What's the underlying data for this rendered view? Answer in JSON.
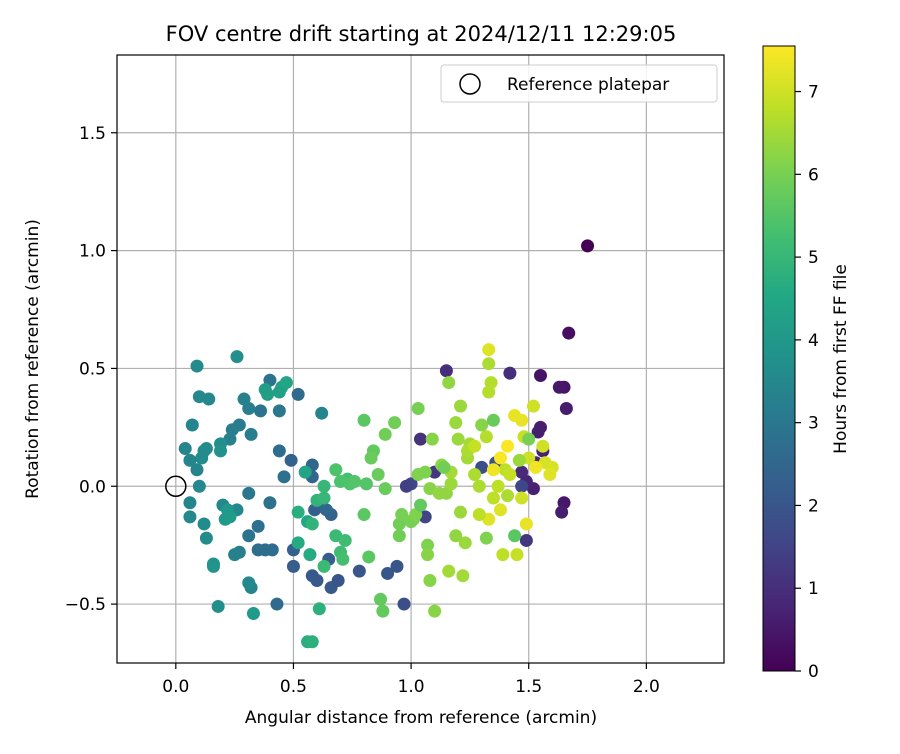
{
  "chart_data": {
    "type": "scatter",
    "title": "FOV centre drift starting at 2024/12/11 12:29:05",
    "xlabel": "Angular distance from reference (arcmin)",
    "ylabel": "Rotation from reference (arcmin)",
    "xlim": [
      -0.25,
      2.33
    ],
    "ylim": [
      -0.75,
      1.83
    ],
    "xticks": [
      {
        "value": 0.0,
        "label": "0.0"
      },
      {
        "value": 0.5,
        "label": "0.5"
      },
      {
        "value": 1.0,
        "label": "1.0"
      },
      {
        "value": 1.5,
        "label": "1.5"
      },
      {
        "value": 2.0,
        "label": "2.0"
      }
    ],
    "yticks": [
      {
        "value": -0.5,
        "label": "−0.5"
      },
      {
        "value": 0.0,
        "label": "0.0"
      },
      {
        "value": 0.5,
        "label": "0.5"
      },
      {
        "value": 1.0,
        "label": "1.0"
      },
      {
        "value": 1.5,
        "label": "1.5"
      }
    ],
    "grid": true,
    "legend": {
      "position": "top-right",
      "entries": [
        {
          "label": "Reference platepar",
          "marker": "open-circle"
        }
      ]
    },
    "reference_point": {
      "x": 0.0,
      "y": 0.0
    },
    "colorbar": {
      "label": "Hours from first FF file",
      "min": 0,
      "max": 7.55,
      "colormap": "viridis",
      "ticks": [
        {
          "value": 0,
          "label": "0"
        },
        {
          "value": 1,
          "label": "1"
        },
        {
          "value": 2,
          "label": "2"
        },
        {
          "value": 3,
          "label": "3"
        },
        {
          "value": 4,
          "label": "4"
        },
        {
          "value": 5,
          "label": "5"
        },
        {
          "value": 6,
          "label": "6"
        },
        {
          "value": 7,
          "label": "7"
        }
      ]
    },
    "points": [
      {
        "x": 1.75,
        "y": 1.02,
        "c": 0.0
      },
      {
        "x": 1.67,
        "y": 0.65,
        "c": 0.3
      },
      {
        "x": 1.55,
        "y": 0.47,
        "c": 0.4
      },
      {
        "x": 1.65,
        "y": 0.42,
        "c": 0.4
      },
      {
        "x": 1.63,
        "y": 0.42,
        "c": 0.5
      },
      {
        "x": 1.66,
        "y": 0.33,
        "c": 0.6
      },
      {
        "x": 1.55,
        "y": 0.25,
        "c": 0.6
      },
      {
        "x": 1.54,
        "y": 0.23,
        "c": 0.6
      },
      {
        "x": 1.56,
        "y": 0.15,
        "c": 0.7
      },
      {
        "x": 1.53,
        "y": 0.1,
        "c": 0.8
      },
      {
        "x": 1.65,
        "y": -0.07,
        "c": 0.5
      },
      {
        "x": 1.64,
        "y": -0.11,
        "c": 0.6
      },
      {
        "x": 1.52,
        "y": -0.01,
        "c": 0.7
      },
      {
        "x": 1.47,
        "y": 0.06,
        "c": 0.9
      },
      {
        "x": 1.49,
        "y": 0.02,
        "c": 0.8
      },
      {
        "x": 1.15,
        "y": 0.49,
        "c": 1.0
      },
      {
        "x": 1.04,
        "y": 0.2,
        "c": 1.1
      },
      {
        "x": 1.1,
        "y": 0.06,
        "c": 1.2
      },
      {
        "x": 1.0,
        "y": 0.01,
        "c": 1.6
      },
      {
        "x": 0.98,
        "y": 0.0,
        "c": 1.4
      },
      {
        "x": 1.06,
        "y": -0.13,
        "c": 1.5
      },
      {
        "x": 1.42,
        "y": 0.48,
        "c": 1.0
      },
      {
        "x": 1.49,
        "y": -0.23,
        "c": 1.2
      },
      {
        "x": 1.47,
        "y": 0.0,
        "c": 1.6
      },
      {
        "x": 1.3,
        "y": 0.08,
        "c": 1.8
      },
      {
        "x": 1.36,
        "y": 0.1,
        "c": 1.9
      },
      {
        "x": 0.97,
        "y": -0.5,
        "c": 1.8
      },
      {
        "x": 0.9,
        "y": -0.37,
        "c": 2.0
      },
      {
        "x": 0.94,
        "y": -0.34,
        "c": 2.0
      },
      {
        "x": 0.78,
        "y": -0.36,
        "c": 2.0
      },
      {
        "x": 0.66,
        "y": -0.43,
        "c": 2.1
      },
      {
        "x": 0.6,
        "y": -0.4,
        "c": 2.1
      },
      {
        "x": 0.58,
        "y": -0.38,
        "c": 2.1
      },
      {
        "x": 0.69,
        "y": -0.4,
        "c": 2.0
      },
      {
        "x": 0.65,
        "y": -0.31,
        "c": 2.2
      },
      {
        "x": 0.5,
        "y": -0.34,
        "c": 2.2
      },
      {
        "x": 0.5,
        "y": -0.27,
        "c": 2.3
      },
      {
        "x": 0.59,
        "y": -0.1,
        "c": 2.3
      },
      {
        "x": 0.61,
        "y": -0.07,
        "c": 2.3
      },
      {
        "x": 0.66,
        "y": -0.12,
        "c": 2.4
      },
      {
        "x": 0.64,
        "y": -0.1,
        "c": 2.5
      },
      {
        "x": 0.49,
        "y": 0.11,
        "c": 2.4
      },
      {
        "x": 0.58,
        "y": 0.09,
        "c": 2.5
      },
      {
        "x": 0.58,
        "y": 0.04,
        "c": 2.5
      },
      {
        "x": 0.52,
        "y": 0.39,
        "c": 2.6
      },
      {
        "x": 0.38,
        "y": -0.27,
        "c": 2.7
      },
      {
        "x": 0.41,
        "y": -0.27,
        "c": 2.7
      },
      {
        "x": 0.35,
        "y": -0.27,
        "c": 2.7
      },
      {
        "x": 0.43,
        "y": -0.5,
        "c": 2.6
      },
      {
        "x": 0.44,
        "y": 0.15,
        "c": 2.7
      },
      {
        "x": 0.46,
        "y": 0.04,
        "c": 2.8
      },
      {
        "x": 0.4,
        "y": -0.07,
        "c": 2.8
      },
      {
        "x": 0.35,
        "y": -0.17,
        "c": 2.8
      },
      {
        "x": 0.31,
        "y": -0.21,
        "c": 2.9
      },
      {
        "x": 0.31,
        "y": -0.03,
        "c": 3.0
      },
      {
        "x": 0.36,
        "y": 0.32,
        "c": 2.9
      },
      {
        "x": 0.4,
        "y": 0.45,
        "c": 2.9
      },
      {
        "x": 0.44,
        "y": 0.32,
        "c": 3.0
      },
      {
        "x": 0.27,
        "y": 0.26,
        "c": 3.1
      },
      {
        "x": 0.24,
        "y": 0.24,
        "c": 3.2
      },
      {
        "x": 0.23,
        "y": 0.2,
        "c": 3.3
      },
      {
        "x": 0.31,
        "y": 0.33,
        "c": 3.2
      },
      {
        "x": 0.29,
        "y": 0.37,
        "c": 3.3
      },
      {
        "x": 0.32,
        "y": 0.22,
        "c": 3.2
      },
      {
        "x": 0.27,
        "y": -0.28,
        "c": 3.2
      },
      {
        "x": 0.25,
        "y": -0.29,
        "c": 3.3
      },
      {
        "x": 0.32,
        "y": -0.43,
        "c": 3.4
      },
      {
        "x": 0.31,
        "y": -0.41,
        "c": 3.5
      },
      {
        "x": 0.26,
        "y": -0.1,
        "c": 3.5
      },
      {
        "x": 0.2,
        "y": -0.08,
        "c": 3.5
      },
      {
        "x": 0.12,
        "y": -0.16,
        "c": 3.6
      },
      {
        "x": 0.13,
        "y": -0.22,
        "c": 3.6
      },
      {
        "x": 0.06,
        "y": -0.13,
        "c": 3.5
      },
      {
        "x": 0.06,
        "y": -0.07,
        "c": 3.4
      },
      {
        "x": 0.1,
        "y": 0.0,
        "c": 3.5
      },
      {
        "x": 0.09,
        "y": 0.07,
        "c": 3.4
      },
      {
        "x": 0.06,
        "y": 0.11,
        "c": 3.4
      },
      {
        "x": 0.04,
        "y": 0.16,
        "c": 3.4
      },
      {
        "x": 0.07,
        "y": 0.26,
        "c": 3.4
      },
      {
        "x": 0.12,
        "y": 0.15,
        "c": 3.5
      },
      {
        "x": 0.11,
        "y": 0.12,
        "c": 3.6
      },
      {
        "x": 0.13,
        "y": 0.16,
        "c": 3.6
      },
      {
        "x": 0.1,
        "y": 0.38,
        "c": 3.5
      },
      {
        "x": 0.14,
        "y": 0.37,
        "c": 3.5
      },
      {
        "x": 0.09,
        "y": 0.51,
        "c": 3.6
      },
      {
        "x": 0.26,
        "y": 0.55,
        "c": 3.7
      },
      {
        "x": 0.62,
        "y": 0.31,
        "c": 3.4
      },
      {
        "x": 0.19,
        "y": 0.18,
        "c": 3.7
      },
      {
        "x": 0.19,
        "y": 0.15,
        "c": 3.8
      },
      {
        "x": 0.18,
        "y": -0.51,
        "c": 3.7
      },
      {
        "x": 0.16,
        "y": -0.34,
        "c": 3.8
      },
      {
        "x": 0.16,
        "y": -0.33,
        "c": 3.9
      },
      {
        "x": 0.22,
        "y": -0.1,
        "c": 4.0
      },
      {
        "x": 0.21,
        "y": -0.14,
        "c": 4.0
      },
      {
        "x": 0.23,
        "y": -0.13,
        "c": 4.1
      },
      {
        "x": 0.33,
        "y": -0.54,
        "c": 4.1
      },
      {
        "x": 0.39,
        "y": 0.39,
        "c": 4.2
      },
      {
        "x": 0.38,
        "y": 0.41,
        "c": 4.2
      },
      {
        "x": 0.44,
        "y": 0.4,
        "c": 4.3
      },
      {
        "x": 0.45,
        "y": 0.42,
        "c": 4.3
      },
      {
        "x": 0.47,
        "y": 0.44,
        "c": 4.4
      },
      {
        "x": 0.55,
        "y": 0.06,
        "c": 4.4
      },
      {
        "x": 0.56,
        "y": -0.15,
        "c": 4.5
      },
      {
        "x": 0.57,
        "y": -0.29,
        "c": 4.6
      },
      {
        "x": 0.52,
        "y": -0.24,
        "c": 4.6
      },
      {
        "x": 0.52,
        "y": -0.11,
        "c": 4.7
      },
      {
        "x": 0.56,
        "y": -0.66,
        "c": 4.7
      },
      {
        "x": 0.58,
        "y": -0.66,
        "c": 4.8
      },
      {
        "x": 0.61,
        "y": -0.52,
        "c": 4.8
      },
      {
        "x": 0.58,
        "y": -0.16,
        "c": 4.9
      },
      {
        "x": 0.6,
        "y": -0.06,
        "c": 4.9
      },
      {
        "x": 0.63,
        "y": -0.05,
        "c": 5.0
      },
      {
        "x": 0.63,
        "y": 0.0,
        "c": 5.0
      },
      {
        "x": 0.63,
        "y": -0.34,
        "c": 5.1
      },
      {
        "x": 0.68,
        "y": -0.21,
        "c": 5.1
      },
      {
        "x": 0.72,
        "y": -0.23,
        "c": 5.2
      },
      {
        "x": 0.7,
        "y": -0.28,
        "c": 5.2
      },
      {
        "x": 0.71,
        "y": -0.31,
        "c": 5.3
      },
      {
        "x": 0.73,
        "y": 0.03,
        "c": 5.3
      },
      {
        "x": 0.7,
        "y": 0.02,
        "c": 5.4
      },
      {
        "x": 0.68,
        "y": 0.07,
        "c": 5.4
      },
      {
        "x": 0.74,
        "y": 0.01,
        "c": 5.4
      },
      {
        "x": 0.76,
        "y": 0.02,
        "c": 5.5
      },
      {
        "x": 0.81,
        "y": 0.01,
        "c": 5.5
      },
      {
        "x": 0.8,
        "y": 0.28,
        "c": 5.6
      },
      {
        "x": 0.8,
        "y": -0.12,
        "c": 5.6
      },
      {
        "x": 0.82,
        "y": -0.3,
        "c": 5.6
      },
      {
        "x": 0.87,
        "y": -0.48,
        "c": 5.7
      },
      {
        "x": 0.88,
        "y": -0.53,
        "c": 5.7
      },
      {
        "x": 0.84,
        "y": 0.15,
        "c": 5.7
      },
      {
        "x": 0.83,
        "y": 0.12,
        "c": 5.8
      },
      {
        "x": 0.86,
        "y": 0.05,
        "c": 5.8
      },
      {
        "x": 0.89,
        "y": -0.01,
        "c": 5.8
      },
      {
        "x": 0.89,
        "y": 0.22,
        "c": 5.9
      },
      {
        "x": 0.93,
        "y": 0.27,
        "c": 5.9
      },
      {
        "x": 0.95,
        "y": -0.16,
        "c": 5.9
      },
      {
        "x": 0.95,
        "y": -0.21,
        "c": 5.9
      },
      {
        "x": 0.96,
        "y": -0.12,
        "c": 6.0
      },
      {
        "x": 1.0,
        "y": -0.15,
        "c": 6.0
      },
      {
        "x": 1.01,
        "y": -0.14,
        "c": 6.0
      },
      {
        "x": 1.02,
        "y": -0.12,
        "c": 6.1
      },
      {
        "x": 1.03,
        "y": 0.33,
        "c": 6.0
      },
      {
        "x": 1.03,
        "y": 0.05,
        "c": 6.1
      },
      {
        "x": 1.06,
        "y": 0.06,
        "c": 6.1
      },
      {
        "x": 1.08,
        "y": -0.01,
        "c": 6.2
      },
      {
        "x": 1.07,
        "y": -0.25,
        "c": 6.1
      },
      {
        "x": 1.07,
        "y": -0.29,
        "c": 6.2
      },
      {
        "x": 1.08,
        "y": -0.4,
        "c": 6.2
      },
      {
        "x": 1.1,
        "y": -0.53,
        "c": 6.2
      },
      {
        "x": 1.09,
        "y": 0.2,
        "c": 6.2
      },
      {
        "x": 1.12,
        "y": -0.03,
        "c": 6.3
      },
      {
        "x": 1.13,
        "y": 0.09,
        "c": 6.3
      },
      {
        "x": 1.15,
        "y": -0.03,
        "c": 6.3
      },
      {
        "x": 1.17,
        "y": 0.01,
        "c": 6.4
      },
      {
        "x": 1.16,
        "y": 0.44,
        "c": 6.3
      },
      {
        "x": 1.2,
        "y": 0.2,
        "c": 6.4
      },
      {
        "x": 1.21,
        "y": 0.34,
        "c": 6.4
      },
      {
        "x": 1.19,
        "y": 0.27,
        "c": 6.4
      },
      {
        "x": 1.21,
        "y": -0.11,
        "c": 6.4
      },
      {
        "x": 1.22,
        "y": -0.38,
        "c": 6.5
      },
      {
        "x": 1.16,
        "y": -0.36,
        "c": 6.5
      },
      {
        "x": 1.24,
        "y": 0.12,
        "c": 6.5
      },
      {
        "x": 1.25,
        "y": 0.18,
        "c": 6.5
      },
      {
        "x": 1.24,
        "y": 0.15,
        "c": 6.6
      },
      {
        "x": 1.27,
        "y": 0.05,
        "c": 6.6
      },
      {
        "x": 1.29,
        "y": 0.0,
        "c": 6.6
      },
      {
        "x": 1.32,
        "y": 0.21,
        "c": 6.7
      },
      {
        "x": 1.33,
        "y": 0.52,
        "c": 6.6
      },
      {
        "x": 1.34,
        "y": 0.44,
        "c": 6.7
      },
      {
        "x": 1.33,
        "y": 0.4,
        "c": 6.7
      },
      {
        "x": 1.35,
        "y": -0.05,
        "c": 6.8
      },
      {
        "x": 1.37,
        "y": 0.0,
        "c": 6.8
      },
      {
        "x": 1.39,
        "y": -0.29,
        "c": 6.8
      },
      {
        "x": 1.4,
        "y": 0.07,
        "c": 6.8
      },
      {
        "x": 1.42,
        "y": 0.05,
        "c": 6.9
      },
      {
        "x": 1.45,
        "y": -0.29,
        "c": 6.9
      },
      {
        "x": 1.48,
        "y": 0.21,
        "c": 6.9
      },
      {
        "x": 1.5,
        "y": 0.12,
        "c": 7.0
      },
      {
        "x": 1.52,
        "y": 0.34,
        "c": 7.0
      },
      {
        "x": 1.56,
        "y": 0.17,
        "c": 7.0
      },
      {
        "x": 1.57,
        "y": 0.1,
        "c": 7.1
      },
      {
        "x": 1.6,
        "y": 0.08,
        "c": 7.1
      },
      {
        "x": 1.59,
        "y": 0.05,
        "c": 7.2
      },
      {
        "x": 1.33,
        "y": 0.58,
        "c": 7.2
      },
      {
        "x": 1.33,
        "y": -0.14,
        "c": 7.2
      },
      {
        "x": 1.44,
        "y": 0.3,
        "c": 7.3
      },
      {
        "x": 1.47,
        "y": 0.28,
        "c": 7.3
      },
      {
        "x": 1.49,
        "y": -0.16,
        "c": 7.3
      },
      {
        "x": 1.53,
        "y": 0.08,
        "c": 7.4
      },
      {
        "x": 1.35,
        "y": 0.07,
        "c": 7.4
      },
      {
        "x": 1.38,
        "y": 0.12,
        "c": 7.5
      },
      {
        "x": 1.41,
        "y": 0.17,
        "c": 7.5
      },
      {
        "x": 1.17,
        "y": 0.06,
        "c": 6.5
      },
      {
        "x": 1.19,
        "y": -0.21,
        "c": 6.3
      },
      {
        "x": 1.23,
        "y": -0.24,
        "c": 6.4
      },
      {
        "x": 1.3,
        "y": 0.26,
        "c": 6.2
      },
      {
        "x": 1.35,
        "y": 0.28,
        "c": 5.8
      },
      {
        "x": 1.44,
        "y": -0.21,
        "c": 5.6
      },
      {
        "x": 1.5,
        "y": 0.2,
        "c": 6.0
      },
      {
        "x": 1.14,
        "y": 0.08,
        "c": 5.9
      },
      {
        "x": 1.27,
        "y": 0.17,
        "c": 6.9
      },
      {
        "x": 1.41,
        "y": -0.04,
        "c": 6.6
      },
      {
        "x": 1.46,
        "y": 0.11,
        "c": 6.4
      },
      {
        "x": 1.32,
        "y": -0.22,
        "c": 6.1
      },
      {
        "x": 1.04,
        "y": -0.08,
        "c": 5.7
      },
      {
        "x": 1.47,
        "y": -0.05,
        "c": 7.0
      },
      {
        "x": 1.38,
        "y": -0.1,
        "c": 7.2
      },
      {
        "x": 1.29,
        "y": -0.12,
        "c": 6.8
      }
    ]
  }
}
